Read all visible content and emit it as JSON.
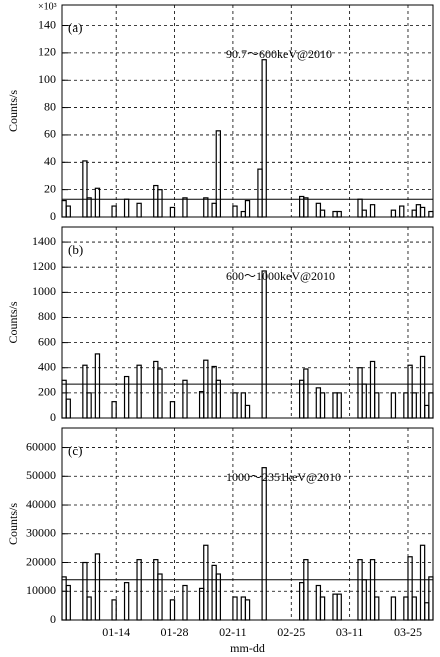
{
  "chart_data": [
    {
      "type": "bar",
      "panel_label": "(a)",
      "annotation": "90.7～600keV@2010",
      "ylabel": "Counts/s",
      "ylabel_note": "×10³",
      "ylim": [
        0,
        155
      ],
      "yticks": [
        0,
        20,
        40,
        60,
        80,
        100,
        120,
        140
      ],
      "grid": true,
      "color": "#000000",
      "reference_line": 13,
      "values": [
        12,
        8,
        0,
        0,
        0,
        41,
        14,
        0,
        21,
        0,
        0,
        0,
        8,
        0,
        0,
        13,
        0,
        0,
        10,
        0,
        0,
        0,
        23,
        20,
        0,
        0,
        7,
        0,
        0,
        14,
        0,
        0,
        0,
        0,
        14,
        0,
        10,
        63,
        0,
        0,
        0,
        8,
        0,
        4,
        12,
        0,
        0,
        35,
        115,
        0,
        0,
        0,
        0,
        0,
        0,
        0,
        0,
        15,
        14,
        0,
        0,
        10,
        5,
        0,
        0,
        4,
        4,
        0,
        0,
        0,
        0,
        13,
        5,
        0,
        9,
        0,
        0,
        0,
        0,
        5,
        0,
        8,
        0,
        0,
        5,
        9,
        7,
        0,
        4
      ]
    },
    {
      "type": "bar",
      "panel_label": "(b)",
      "annotation": "600～1000keV@2010",
      "ylabel": "Counts/s",
      "ylim": [
        0,
        1520
      ],
      "yticks": [
        0,
        200,
        400,
        600,
        800,
        1000,
        1200,
        1400
      ],
      "grid": true,
      "color": "#000000",
      "reference_line": 270,
      "values": [
        300,
        150,
        0,
        0,
        0,
        420,
        200,
        0,
        510,
        0,
        0,
        0,
        130,
        0,
        0,
        330,
        0,
        0,
        420,
        0,
        0,
        0,
        450,
        390,
        0,
        0,
        130,
        0,
        0,
        300,
        0,
        0,
        0,
        210,
        460,
        0,
        410,
        300,
        0,
        0,
        0,
        200,
        0,
        200,
        100,
        0,
        0,
        0,
        1170,
        0,
        0,
        0,
        0,
        0,
        0,
        0,
        0,
        300,
        390,
        0,
        0,
        240,
        200,
        0,
        0,
        200,
        200,
        0,
        0,
        0,
        0,
        400,
        270,
        0,
        450,
        200,
        0,
        0,
        0,
        200,
        0,
        0,
        200,
        420,
        200,
        0,
        490,
        100,
        200
      ]
    },
    {
      "type": "bar",
      "panel_label": "(c)",
      "annotation": "1000～2351keV@2010",
      "ylabel": "Counts/s",
      "xlabel": "mm-dd",
      "ylim": [
        0,
        66800
      ],
      "yticks": [
        0,
        10000,
        20000,
        30000,
        40000,
        50000,
        60000
      ],
      "grid": true,
      "color": "#000000",
      "reference_line": 14000,
      "categories": [
        null,
        null,
        null,
        null,
        null,
        null,
        null,
        null,
        null,
        null,
        null,
        null,
        null,
        "01-14",
        null,
        null,
        null,
        null,
        null,
        null,
        null,
        null,
        null,
        null,
        null,
        null,
        null,
        "01-28",
        null,
        null,
        null,
        null,
        null,
        null,
        null,
        null,
        null,
        null,
        null,
        null,
        null,
        "02-11",
        null,
        null,
        null,
        null,
        null,
        null,
        null,
        null,
        null,
        null,
        null,
        null,
        null,
        "02-25",
        null,
        null,
        null,
        null,
        null,
        null,
        null,
        null,
        null,
        null,
        null,
        null,
        null,
        "03-11",
        null,
        null,
        null,
        null,
        null,
        null,
        null,
        null,
        null,
        null,
        null,
        null,
        null,
        "03-25",
        null,
        null,
        null,
        null,
        null
      ],
      "values": [
        15000,
        12000,
        0,
        0,
        0,
        20000,
        8000,
        0,
        23000,
        0,
        0,
        0,
        7000,
        0,
        0,
        13000,
        0,
        0,
        21000,
        0,
        0,
        0,
        21000,
        16000,
        0,
        0,
        7000,
        0,
        0,
        12000,
        0,
        0,
        0,
        11000,
        26000,
        0,
        19000,
        16000,
        0,
        0,
        0,
        8000,
        0,
        8000,
        7000,
        0,
        0,
        0,
        53000,
        0,
        0,
        0,
        0,
        0,
        0,
        0,
        0,
        13000,
        21000,
        0,
        0,
        12000,
        8000,
        0,
        0,
        9000,
        9000,
        0,
        0,
        0,
        0,
        21000,
        14000,
        0,
        21000,
        8000,
        0,
        0,
        0,
        8000,
        0,
        0,
        8000,
        22000,
        8000,
        0,
        26000,
        6000,
        15000
      ]
    }
  ]
}
